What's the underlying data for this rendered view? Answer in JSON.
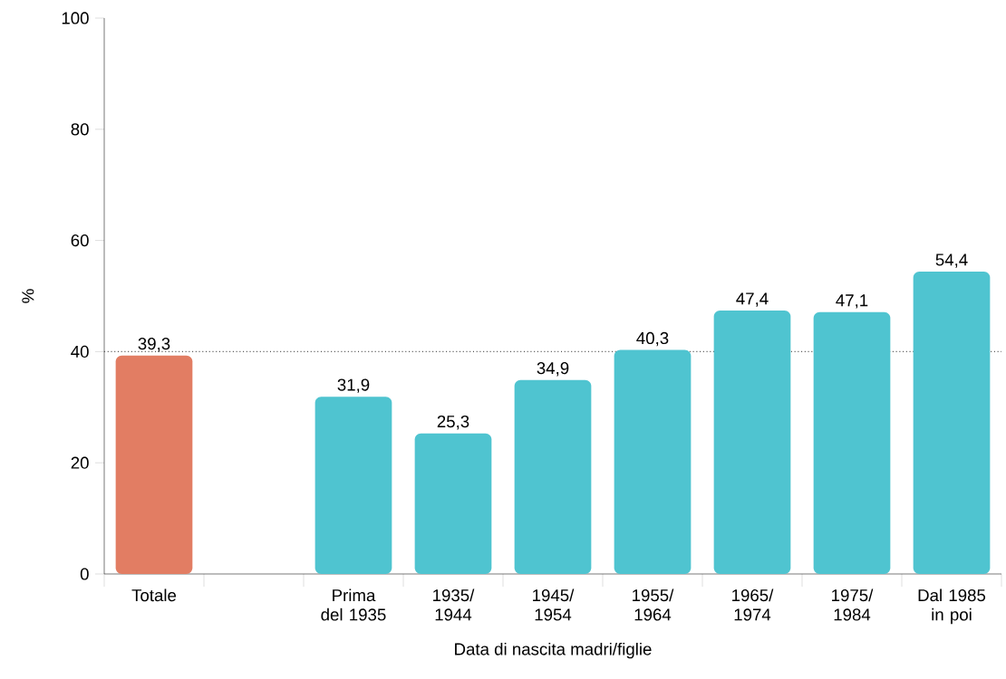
{
  "chart_data": {
    "type": "bar",
    "xlabel": "Data di nascita madri/figlie",
    "ylabel": "%",
    "categories": [
      "Totale",
      null,
      "Prima del 1935",
      "1935/ 1944",
      "1945/ 1954",
      "1955/ 1964",
      "1965/ 1974",
      "1975/ 1984",
      "Dal 1985 in poi"
    ],
    "values": [
      39.3,
      null,
      31.9,
      25.3,
      34.9,
      40.3,
      47.4,
      47.1,
      54.4
    ],
    "value_labels": [
      "39,3",
      null,
      "31,9",
      "25,3",
      "34,9",
      "40,3",
      "47,4",
      "47,1",
      "54,4"
    ],
    "colors": [
      "#e27d63",
      null,
      "#4fc4d0",
      "#4fc4d0",
      "#4fc4d0",
      "#4fc4d0",
      "#4fc4d0",
      "#4fc4d0",
      "#4fc4d0"
    ],
    "ylim": [
      0,
      100
    ],
    "yticks": [
      0,
      20,
      40,
      60,
      80,
      100
    ],
    "ref_lines": [
      {
        "axis": "y",
        "value": 40,
        "line_style": "dotted",
        "color": "#555555"
      }
    ]
  }
}
